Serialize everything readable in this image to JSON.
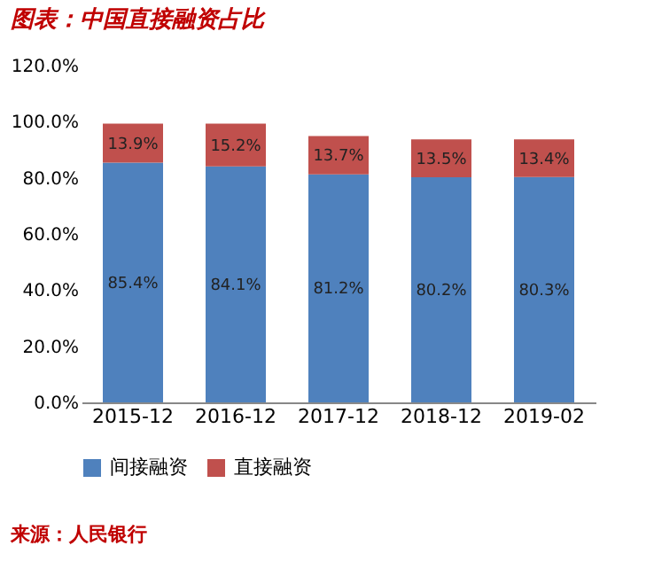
{
  "chart_data": {
    "type": "bar",
    "title": "图表：中国直接融资占比",
    "categories": [
      "2015-12",
      "2016-12",
      "2017-12",
      "2018-12",
      "2019-02"
    ],
    "stacked": true,
    "series": [
      {
        "name": "间接融资",
        "color": "#4f81bd",
        "values": [
          85.4,
          84.1,
          81.2,
          80.2,
          80.3
        ],
        "value_labels": [
          "85.4%",
          "84.1%",
          "81.2%",
          "80.2%",
          "80.3%"
        ]
      },
      {
        "name": "直接融资",
        "color": "#c0504d",
        "values": [
          13.9,
          15.2,
          13.7,
          13.5,
          13.4
        ],
        "value_labels": [
          "13.9%",
          "15.2%",
          "13.7%",
          "13.5%",
          "13.4%"
        ]
      }
    ],
    "ylim": [
      0,
      120
    ],
    "yticks": [
      {
        "value": 0,
        "label": "0.0%"
      },
      {
        "value": 20,
        "label": "20.0%"
      },
      {
        "value": 40,
        "label": "40.0%"
      },
      {
        "value": 60,
        "label": "60.0%"
      },
      {
        "value": 80,
        "label": "80.0%"
      },
      {
        "value": 100,
        "label": "100.0%"
      },
      {
        "value": 120,
        "label": "120.0%"
      }
    ],
    "grid": false,
    "legend": "bottom",
    "annotations": [
      "来源：人民银行"
    ]
  }
}
